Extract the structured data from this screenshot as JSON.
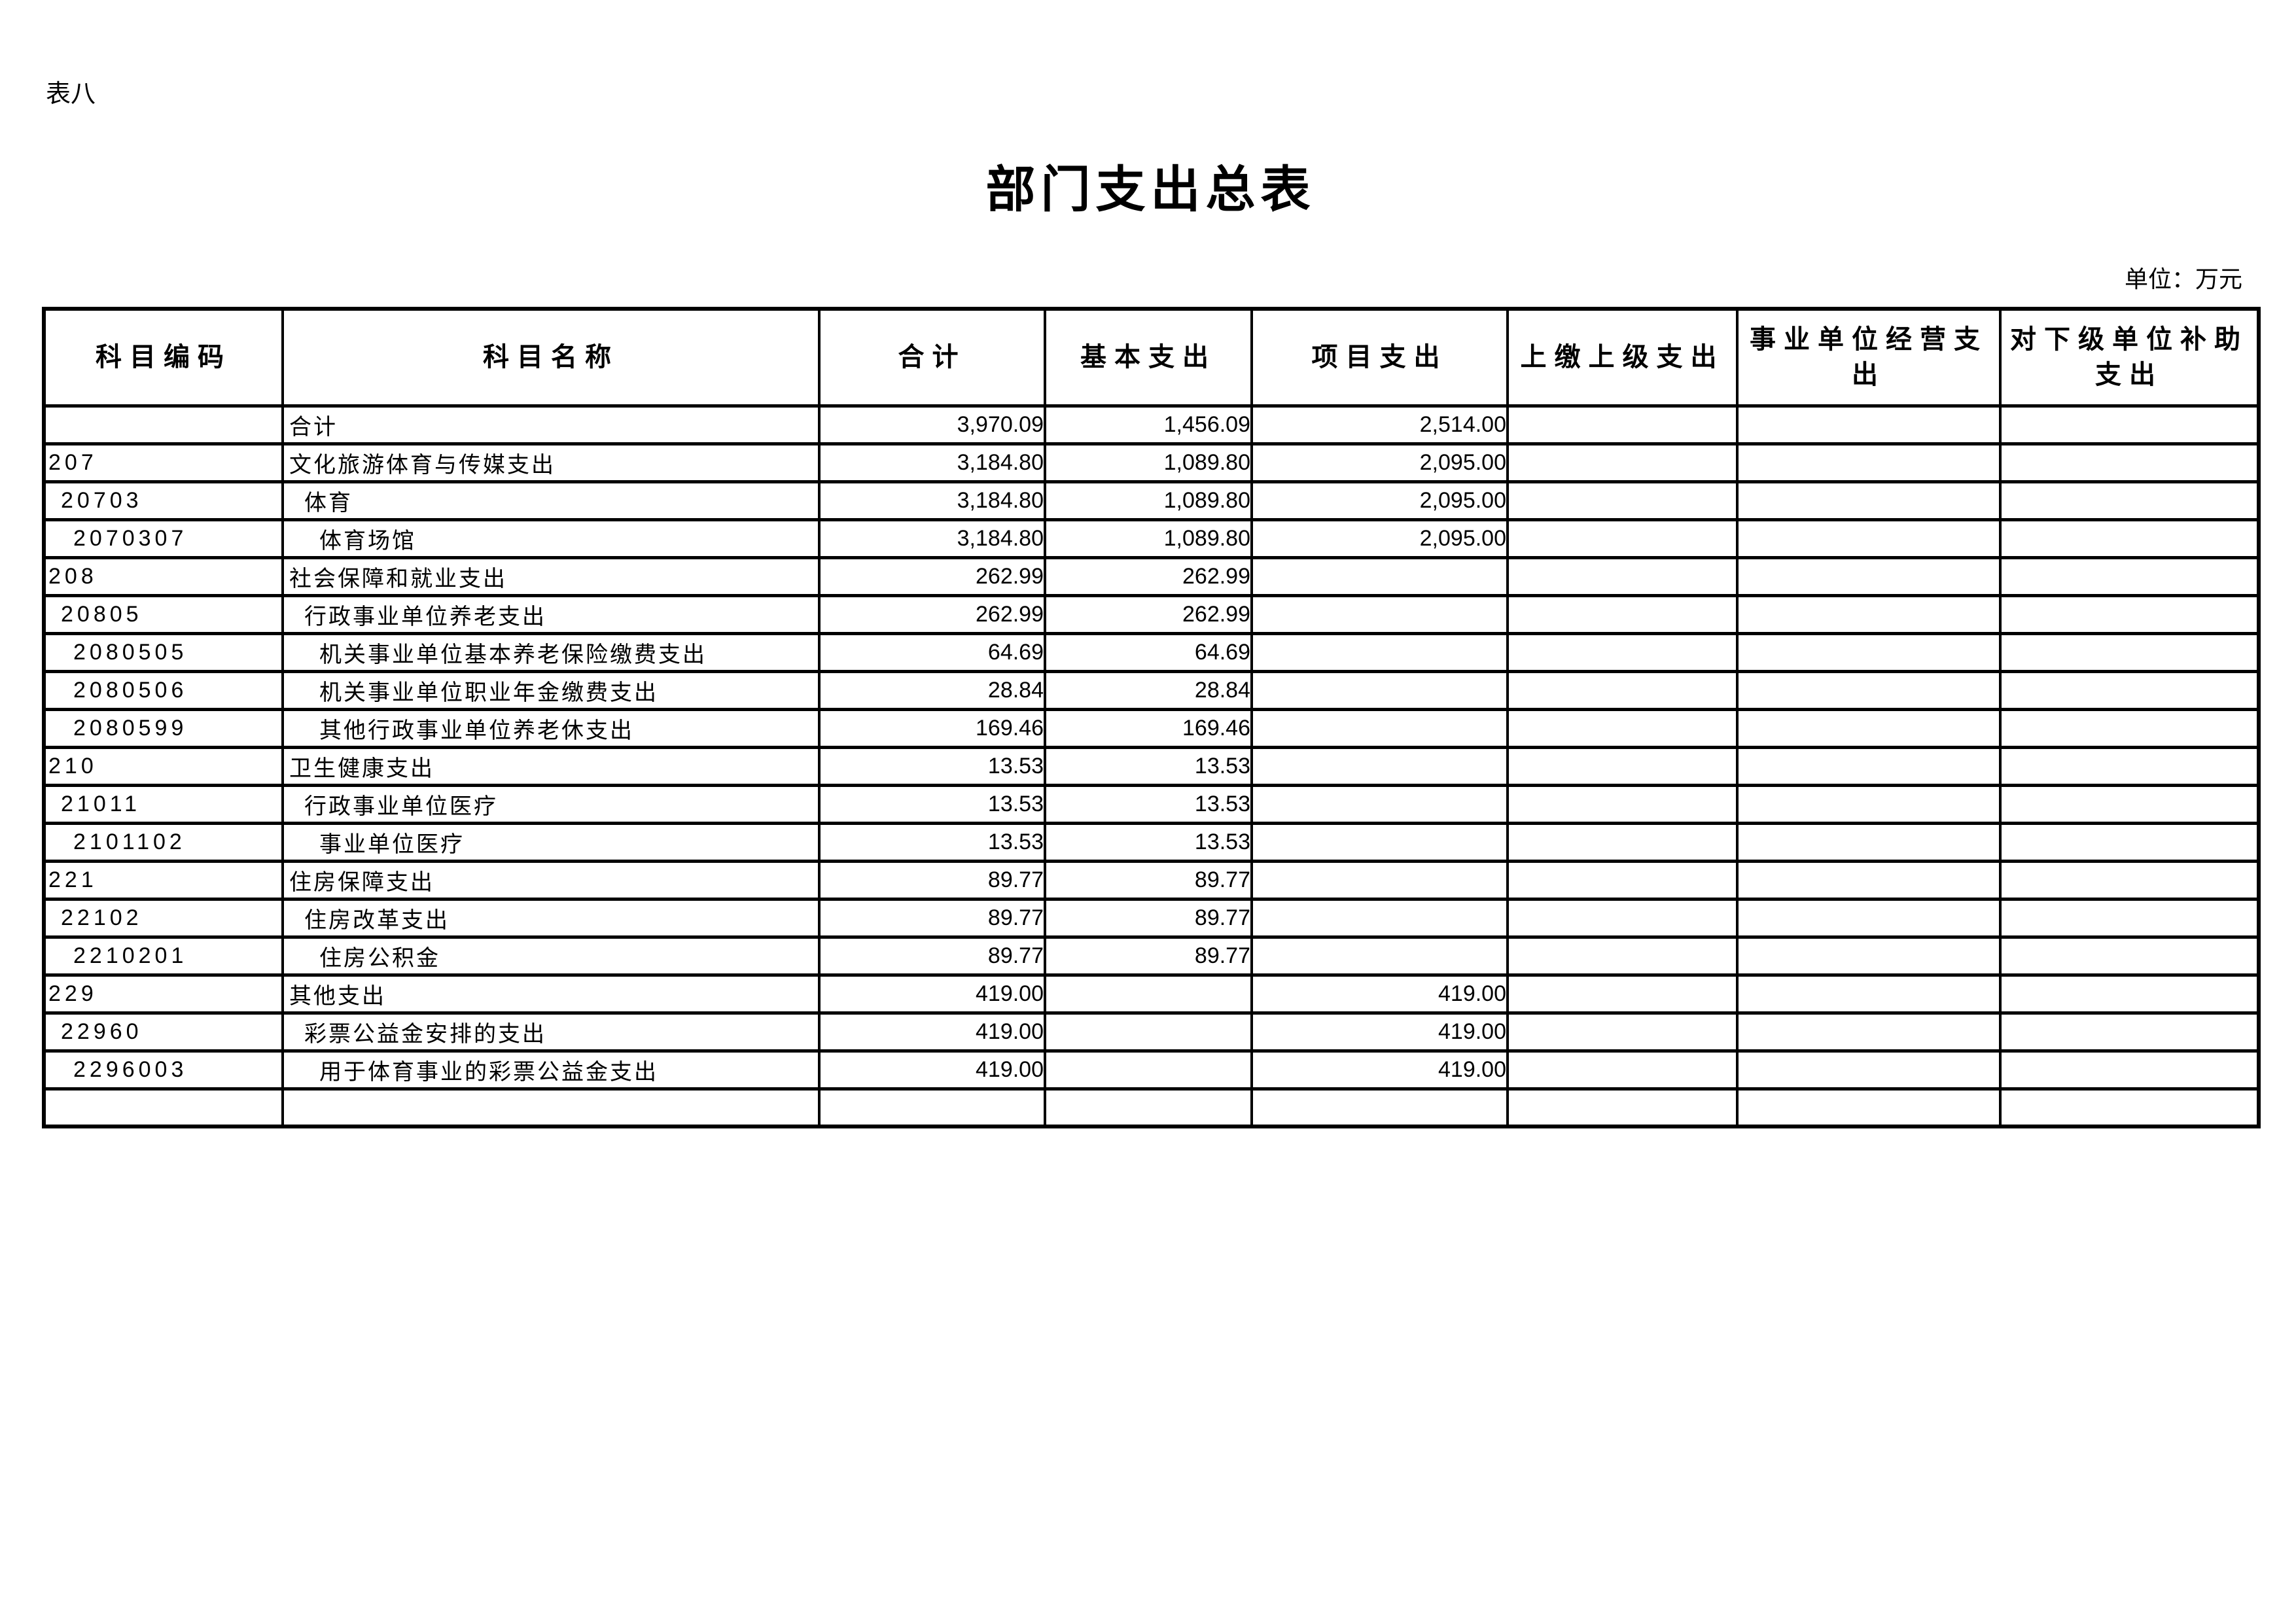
{
  "page": {
    "table_label": "表八",
    "title": "部门支出总表",
    "unit_note": "单位：万元"
  },
  "table": {
    "columns": [
      {
        "key": "code",
        "label": "科目编码"
      },
      {
        "key": "name",
        "label": "科目名称"
      },
      {
        "key": "total",
        "label": "合计"
      },
      {
        "key": "basic",
        "label": "基本支出"
      },
      {
        "key": "project",
        "label": "项目支出"
      },
      {
        "key": "upper",
        "label": "上缴上级支出"
      },
      {
        "key": "operating",
        "label": "事业单位经营支\n出"
      },
      {
        "key": "subsidy",
        "label": "对下级单位补助\n支出"
      }
    ],
    "rows": [
      {
        "code": "",
        "indent": 0,
        "name": "合计",
        "total": "3,970.09",
        "basic": "1,456.09",
        "project": "2,514.00",
        "upper": "",
        "operating": "",
        "subsidy": ""
      },
      {
        "code": "207",
        "indent": 0,
        "name": "文化旅游体育与传媒支出",
        "total": "3,184.80",
        "basic": "1,089.80",
        "project": "2,095.00",
        "upper": "",
        "operating": "",
        "subsidy": ""
      },
      {
        "code": "20703",
        "indent": 1,
        "name": "体育",
        "total": "3,184.80",
        "basic": "1,089.80",
        "project": "2,095.00",
        "upper": "",
        "operating": "",
        "subsidy": ""
      },
      {
        "code": "2070307",
        "indent": 2,
        "name": "体育场馆",
        "total": "3,184.80",
        "basic": "1,089.80",
        "project": "2,095.00",
        "upper": "",
        "operating": "",
        "subsidy": ""
      },
      {
        "code": "208",
        "indent": 0,
        "name": "社会保障和就业支出",
        "total": "262.99",
        "basic": "262.99",
        "project": "",
        "upper": "",
        "operating": "",
        "subsidy": ""
      },
      {
        "code": "20805",
        "indent": 1,
        "name": "行政事业单位养老支出",
        "total": "262.99",
        "basic": "262.99",
        "project": "",
        "upper": "",
        "operating": "",
        "subsidy": ""
      },
      {
        "code": "2080505",
        "indent": 2,
        "name": "机关事业单位基本养老保险缴费支出",
        "total": "64.69",
        "basic": "64.69",
        "project": "",
        "upper": "",
        "operating": "",
        "subsidy": ""
      },
      {
        "code": "2080506",
        "indent": 2,
        "name": "机关事业单位职业年金缴费支出",
        "total": "28.84",
        "basic": "28.84",
        "project": "",
        "upper": "",
        "operating": "",
        "subsidy": ""
      },
      {
        "code": "2080599",
        "indent": 2,
        "name": "其他行政事业单位养老休支出",
        "total": "169.46",
        "basic": "169.46",
        "project": "",
        "upper": "",
        "operating": "",
        "subsidy": ""
      },
      {
        "code": "210",
        "indent": 0,
        "name": "卫生健康支出",
        "total": "13.53",
        "basic": "13.53",
        "project": "",
        "upper": "",
        "operating": "",
        "subsidy": ""
      },
      {
        "code": "21011",
        "indent": 1,
        "name": "行政事业单位医疗",
        "total": "13.53",
        "basic": "13.53",
        "project": "",
        "upper": "",
        "operating": "",
        "subsidy": ""
      },
      {
        "code": "2101102",
        "indent": 2,
        "name": "事业单位医疗",
        "total": "13.53",
        "basic": "13.53",
        "project": "",
        "upper": "",
        "operating": "",
        "subsidy": ""
      },
      {
        "code": "221",
        "indent": 0,
        "name": "住房保障支出",
        "total": "89.77",
        "basic": "89.77",
        "project": "",
        "upper": "",
        "operating": "",
        "subsidy": ""
      },
      {
        "code": "22102",
        "indent": 1,
        "name": "住房改革支出",
        "total": "89.77",
        "basic": "89.77",
        "project": "",
        "upper": "",
        "operating": "",
        "subsidy": ""
      },
      {
        "code": "2210201",
        "indent": 2,
        "name": "住房公积金",
        "total": "89.77",
        "basic": "89.77",
        "project": "",
        "upper": "",
        "operating": "",
        "subsidy": ""
      },
      {
        "code": "229",
        "indent": 0,
        "name": "其他支出",
        "total": "419.00",
        "basic": "",
        "project": "419.00",
        "upper": "",
        "operating": "",
        "subsidy": ""
      },
      {
        "code": "22960",
        "indent": 1,
        "name": "彩票公益金安排的支出",
        "total": "419.00",
        "basic": "",
        "project": "419.00",
        "upper": "",
        "operating": "",
        "subsidy": ""
      },
      {
        "code": "2296003",
        "indent": 2,
        "name": "用于体育事业的彩票公益金支出",
        "total": "419.00",
        "basic": "",
        "project": "419.00",
        "upper": "",
        "operating": "",
        "subsidy": ""
      },
      {
        "code": "",
        "indent": 0,
        "name": "",
        "total": "",
        "basic": "",
        "project": "",
        "upper": "",
        "operating": "",
        "subsidy": ""
      }
    ]
  }
}
